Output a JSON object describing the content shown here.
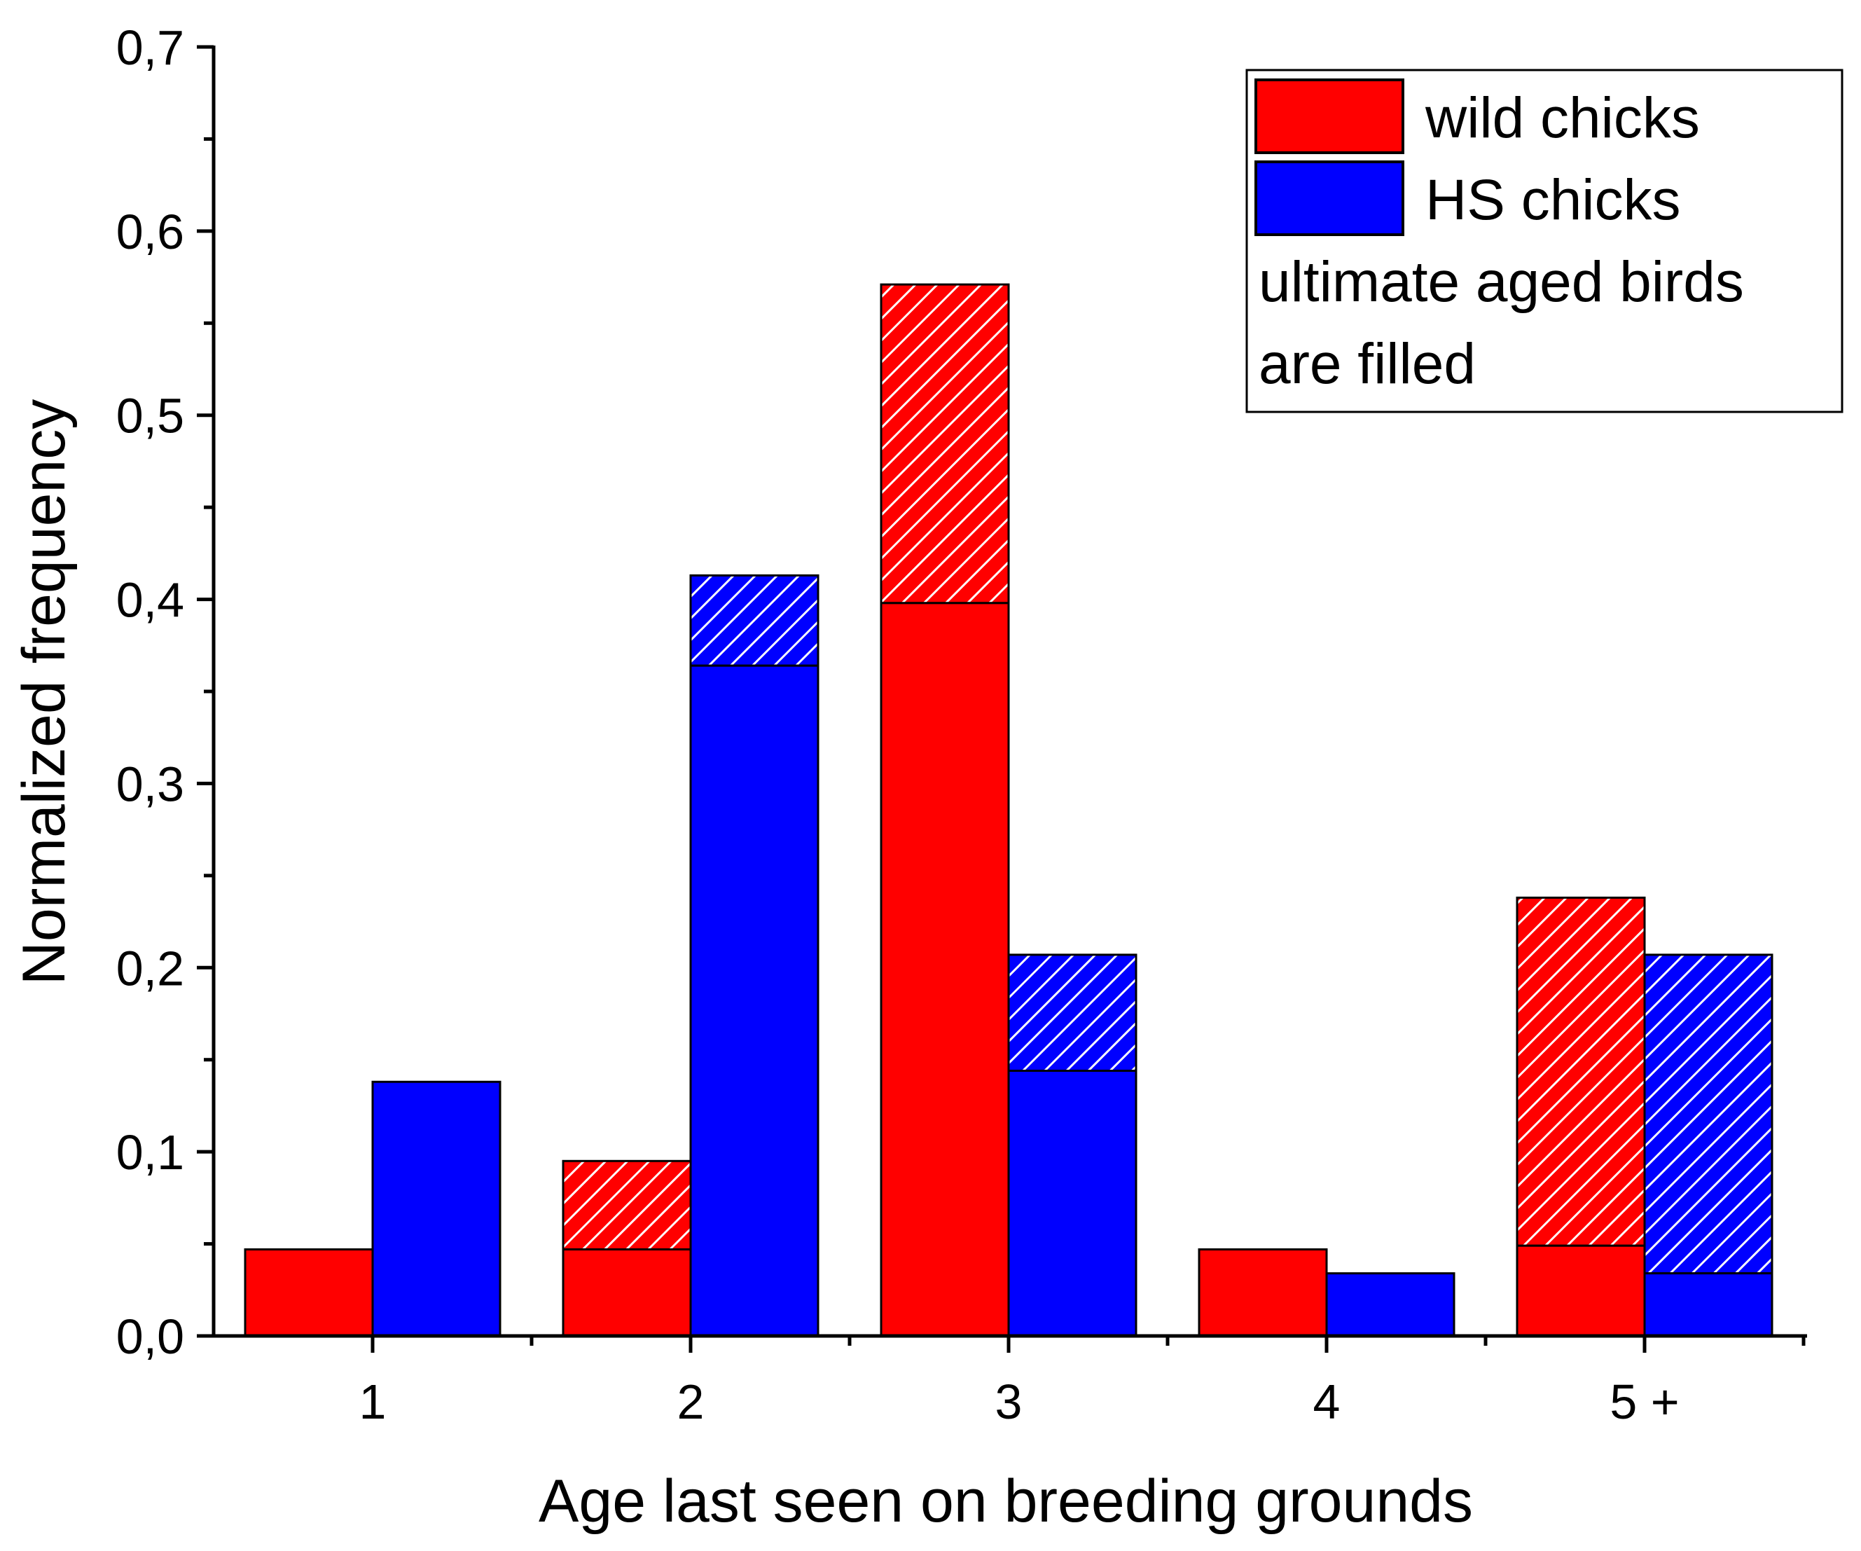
{
  "chart_data": {
    "type": "bar",
    "title": "",
    "xlabel": "Age last seen on breeding grounds",
    "ylabel": "Normalized frequency",
    "ylim": [
      0,
      0.7
    ],
    "yticks": [
      "0,0",
      "0,1",
      "0,2",
      "0,3",
      "0,4",
      "0,5",
      "0,6",
      "0,7"
    ],
    "categories": [
      "1",
      "2",
      "3",
      "4",
      "5 +"
    ],
    "series": [
      {
        "name": "wild chicks",
        "color": "#ff0000",
        "filled": [
          0.047,
          0.047,
          0.398,
          0.047,
          0.049
        ],
        "totals": [
          0.047,
          0.095,
          0.571,
          0.047,
          0.238
        ]
      },
      {
        "name": "HS chicks",
        "color": "#0000ff",
        "filled": [
          0.138,
          0.364,
          0.144,
          0.034,
          0.034
        ],
        "totals": [
          0.138,
          0.413,
          0.207,
          0.034,
          0.207
        ]
      }
    ],
    "legend": {
      "position": "top-right",
      "entries": [
        "wild chicks",
        "HS chicks"
      ],
      "note_line1": "ultimate aged birds",
      "note_line2": "are filled"
    }
  }
}
